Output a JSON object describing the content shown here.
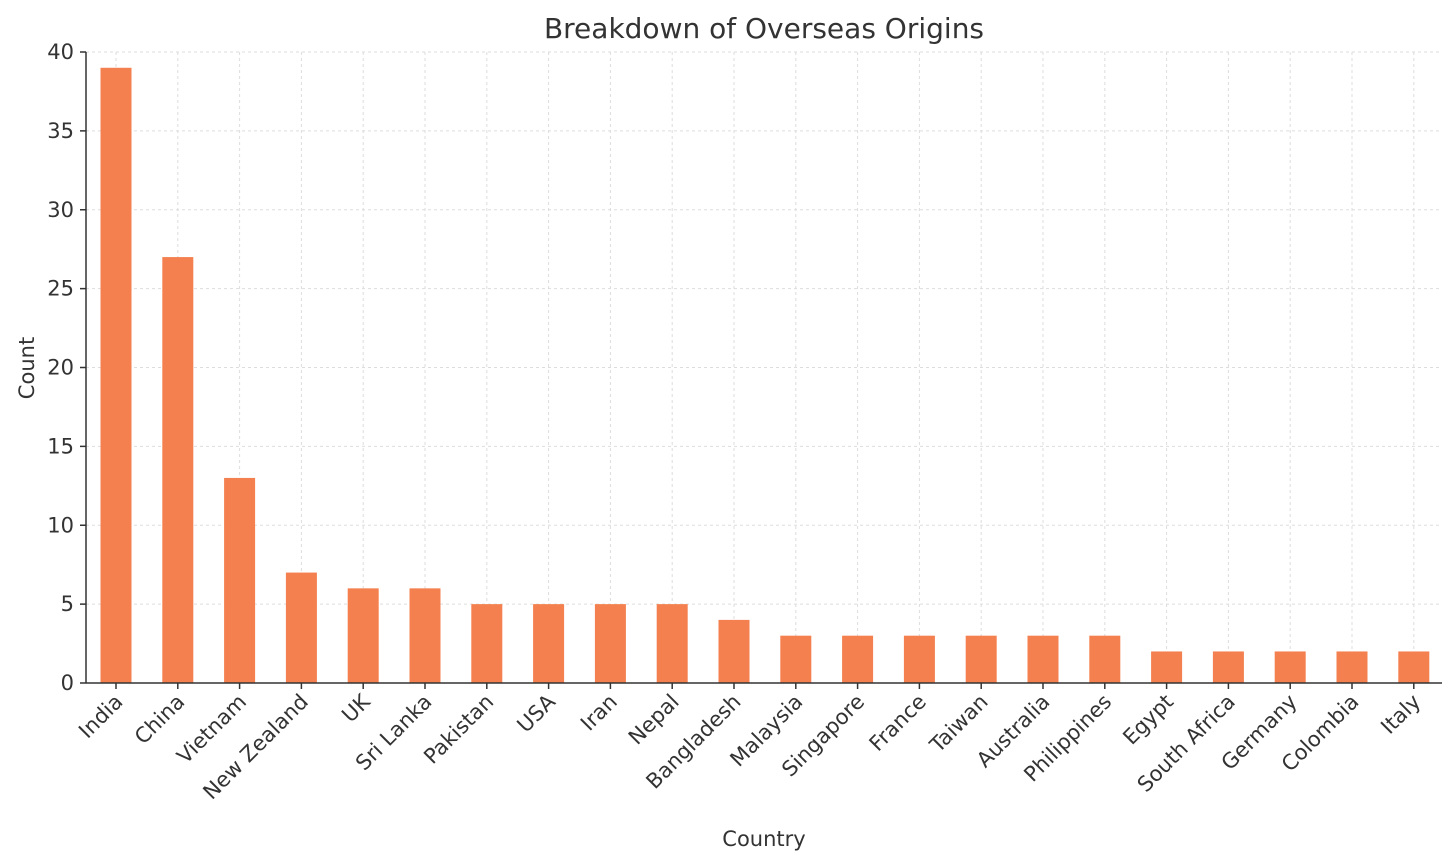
{
  "chart_data": {
    "type": "bar",
    "title": "Breakdown of Overseas Origins",
    "xlabel": "Country",
    "ylabel": "Count",
    "categories": [
      "India",
      "China",
      "Vietnam",
      "New Zealand",
      "UK",
      "Sri Lanka",
      "Pakistan",
      "USA",
      "Iran",
      "Nepal",
      "Bangladesh",
      "Malaysia",
      "Singapore",
      "France",
      "Taiwan",
      "Australia",
      "Philippines",
      "Egypt",
      "South Africa",
      "Germany",
      "Colombia",
      "Italy"
    ],
    "values": [
      39,
      27,
      13,
      7,
      6,
      6,
      5,
      5,
      5,
      5,
      4,
      3,
      3,
      3,
      3,
      3,
      3,
      2,
      2,
      2,
      2,
      2
    ],
    "ylim": [
      0,
      40
    ],
    "yticks": [
      0,
      5,
      10,
      15,
      20,
      25,
      30,
      35,
      40
    ],
    "grid": true,
    "bar_color": "#F4804F",
    "grid_color": "#dddddd",
    "axis_color": "#333333"
  }
}
